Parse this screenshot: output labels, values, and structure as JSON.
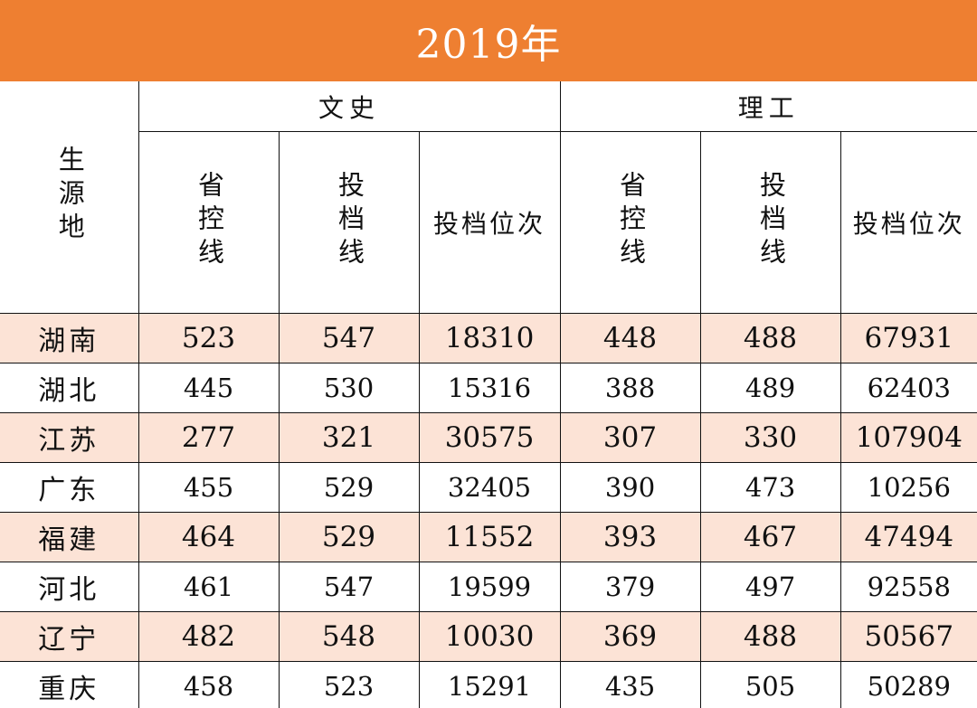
{
  "title": "2019年",
  "header": {
    "origin_label": "生源地",
    "groups": [
      "文史",
      "理工"
    ],
    "columns": {
      "provincial_line": "省控线",
      "admission_line": "投档线",
      "admission_rank": "投档位次"
    }
  },
  "rows": [
    {
      "province": "湖南",
      "wenshi": [
        "523",
        "547",
        "18310"
      ],
      "ligong": [
        "448",
        "488",
        "67931"
      ]
    },
    {
      "province": "湖北",
      "wenshi": [
        "445",
        "530",
        "15316"
      ],
      "ligong": [
        "388",
        "489",
        "62403"
      ]
    },
    {
      "province": "江苏",
      "wenshi": [
        "277",
        "321",
        "30575"
      ],
      "ligong": [
        "307",
        "330",
        "107904"
      ]
    },
    {
      "province": "广东",
      "wenshi": [
        "455",
        "529",
        "32405"
      ],
      "ligong": [
        "390",
        "473",
        "10256"
      ]
    },
    {
      "province": "福建",
      "wenshi": [
        "464",
        "529",
        "11552"
      ],
      "ligong": [
        "393",
        "467",
        "47494"
      ]
    },
    {
      "province": "河北",
      "wenshi": [
        "461",
        "547",
        "19599"
      ],
      "ligong": [
        "379",
        "497",
        "92558"
      ]
    },
    {
      "province": "辽宁",
      "wenshi": [
        "482",
        "548",
        "10030"
      ],
      "ligong": [
        "369",
        "488",
        "50567"
      ]
    },
    {
      "province": "重庆",
      "wenshi": [
        "458",
        "523",
        "15291"
      ],
      "ligong": [
        "435",
        "505",
        "50289"
      ]
    }
  ],
  "colors": {
    "banner": "#EE7F31",
    "shaded_row": "#FCE3D6",
    "border": "#111111"
  }
}
